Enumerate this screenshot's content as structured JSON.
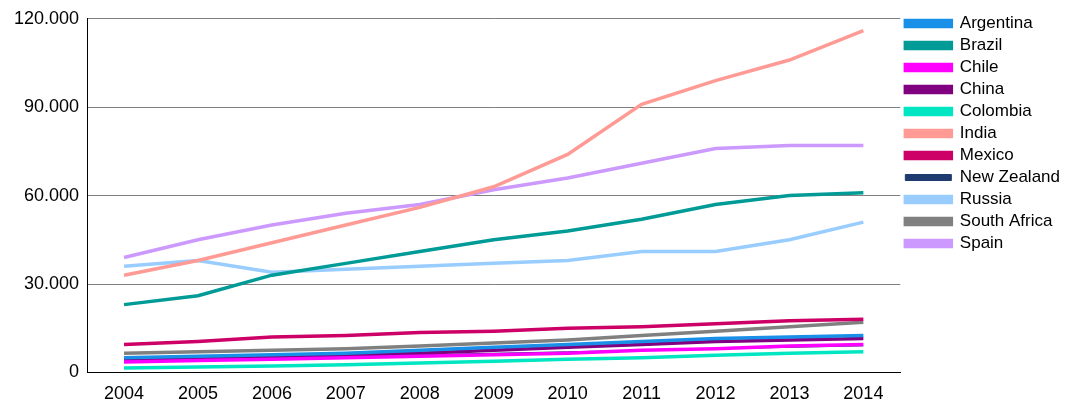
{
  "chart_data": {
    "type": "line",
    "categories": [
      "2004",
      "2005",
      "2006",
      "2007",
      "2008",
      "2009",
      "2010",
      "2011",
      "2012",
      "2013",
      "2014"
    ],
    "series": [
      {
        "name": "Argentina",
        "color": "#1a8fe8",
        "values": [
          5000,
          5500,
          6000,
          6500,
          7500,
          8500,
          9500,
          10500,
          11500,
          12000,
          12500
        ]
      },
      {
        "name": "Brazil",
        "color": "#009b96",
        "values": [
          23000,
          26000,
          33000,
          37000,
          41000,
          45000,
          48000,
          52000,
          57000,
          60000,
          61000
        ]
      },
      {
        "name": "Chile",
        "color": "#ff00ff",
        "values": [
          3500,
          4000,
          4500,
          5000,
          5500,
          6000,
          6500,
          7500,
          8000,
          9000,
          9500
        ]
      },
      {
        "name": "China",
        "color": "#800080",
        "values": [
          4500,
          5000,
          5500,
          6000,
          6500,
          7500,
          8500,
          9500,
          10500,
          11000,
          11500
        ]
      },
      {
        "name": "Colombia",
        "color": "#00e6c3",
        "values": [
          1500,
          1800,
          2200,
          2600,
          3200,
          3800,
          4500,
          5000,
          5800,
          6500,
          7000
        ]
      },
      {
        "name": "India",
        "color": "#ff9a94",
        "values": [
          33000,
          38000,
          44000,
          50000,
          56000,
          63000,
          74000,
          91000,
          99000,
          106000,
          116000
        ]
      },
      {
        "name": "Mexico",
        "color": "#cc0066",
        "values": [
          9500,
          10500,
          12000,
          12500,
          13500,
          14000,
          15000,
          15500,
          16500,
          17500,
          18000
        ]
      },
      {
        "name": "New Zealand",
        "color": "#1f3a6e",
        "line_style": "thin",
        "values": [
          4000,
          4500,
          5000,
          5500,
          6000,
          6500,
          7000,
          7500,
          8000,
          8500,
          9000
        ]
      },
      {
        "name": "Russia",
        "color": "#99ccff",
        "values": [
          36000,
          38000,
          34000,
          35000,
          36000,
          37000,
          38000,
          41000,
          41000,
          45000,
          51000
        ]
      },
      {
        "name": "South Africa",
        "color": "#808080",
        "values": [
          6500,
          7000,
          7500,
          8000,
          9000,
          10000,
          11000,
          12500,
          14000,
          15500,
          17000
        ]
      },
      {
        "name": "Spain",
        "color": "#cc99ff",
        "values": [
          39000,
          45000,
          50000,
          54000,
          57000,
          62000,
          66000,
          71000,
          76000,
          77000,
          77000
        ]
      }
    ],
    "ylim": [
      0,
      120000
    ],
    "yticks": [
      0,
      {
        "value": 30000,
        "label": "30.000"
      },
      {
        "value": 60000,
        "label": "60.000"
      },
      {
        "value": 90000,
        "label": "90.000"
      },
      {
        "value": 120000,
        "label": "120.000"
      }
    ],
    "grid": true,
    "legend": "top-right"
  }
}
